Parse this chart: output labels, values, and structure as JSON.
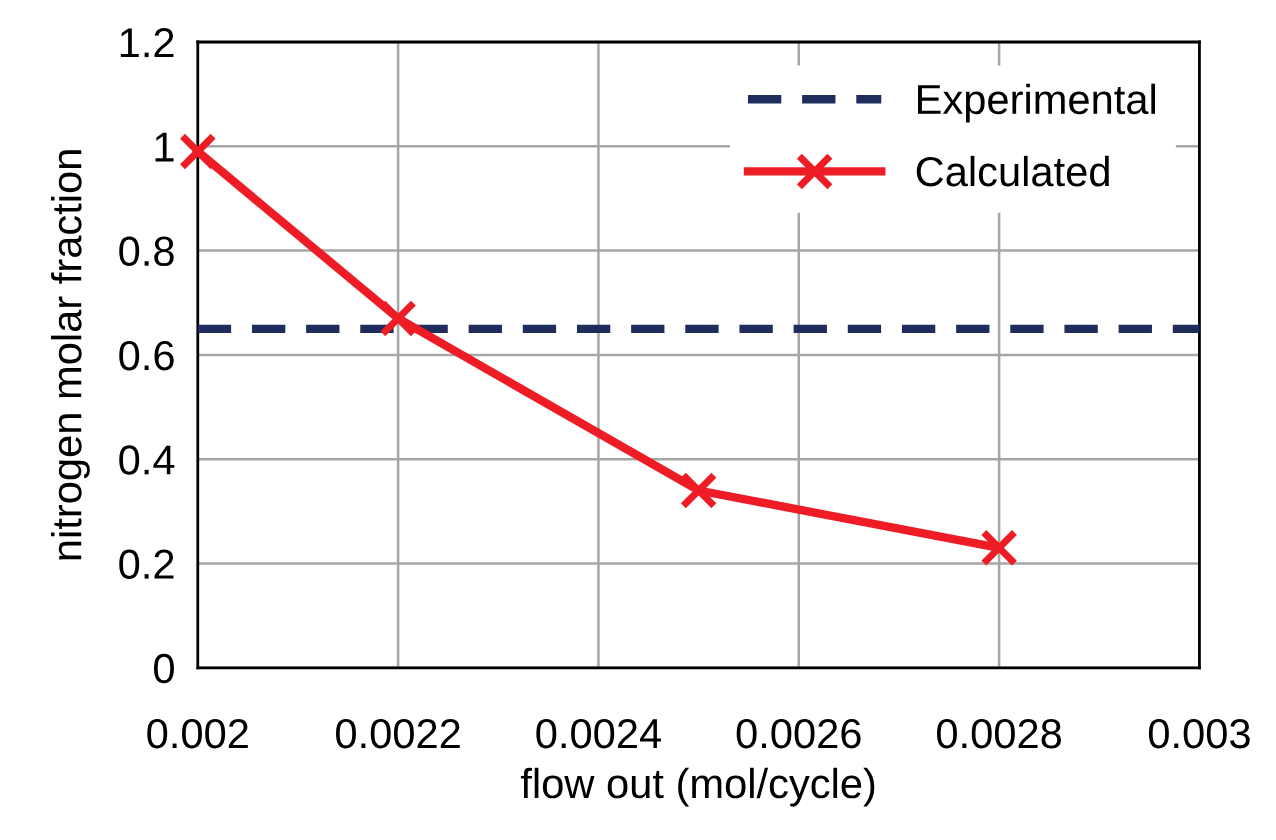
{
  "chart_data": {
    "type": "line",
    "xlabel": "flow out (mol/cycle)",
    "ylabel": "nitrogen molar fraction",
    "series": [
      {
        "name": "Experimental",
        "color": "#1f2d5c",
        "x": [
          0.002,
          0.003
        ],
        "values": [
          0.65,
          0.65
        ],
        "line_style": "dashed",
        "marker": "none"
      },
      {
        "name": "Calculated",
        "color": "#ee1c25",
        "x": [
          0.002,
          0.0022,
          0.0025,
          0.0028
        ],
        "values": [
          0.99,
          0.67,
          0.34,
          0.23
        ],
        "line_style": "solid",
        "marker": "cross"
      }
    ],
    "xlim": [
      0.002,
      0.003
    ],
    "xticks": [
      0.002,
      0.0022,
      0.0024,
      0.0026,
      0.0028,
      0.003
    ],
    "ylim": [
      0,
      1.2
    ],
    "yticks": [
      0,
      0.2,
      0.4,
      0.6,
      0.8,
      1,
      1.2
    ],
    "grid": true,
    "legend": "top right"
  }
}
